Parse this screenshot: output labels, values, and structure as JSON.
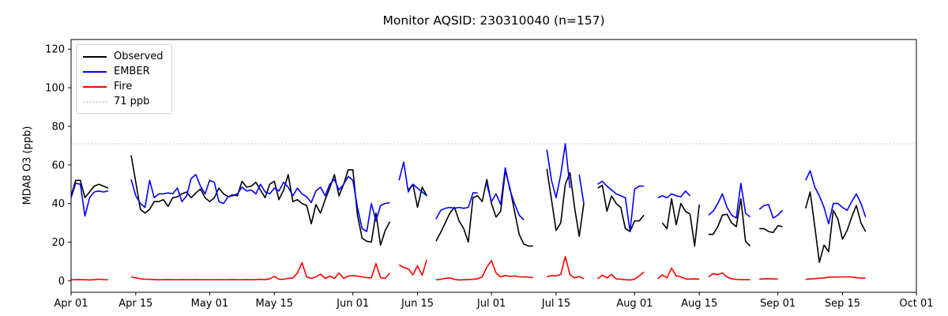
{
  "chart_data": {
    "type": "line",
    "title": "Monitor AQSID: 230310040 (n=157)",
    "ylabel": "MDA8 O3 (ppb)",
    "xlabel": "",
    "grid": false,
    "legend_position": "upper left",
    "x_axis": {
      "unit": "days since Apr 01",
      "min": 0,
      "max": 183,
      "ticks": [
        {
          "day": 0,
          "label": "Apr 01"
        },
        {
          "day": 14,
          "label": "Apr 15"
        },
        {
          "day": 30,
          "label": "May 01"
        },
        {
          "day": 44,
          "label": "May 15"
        },
        {
          "day": 61,
          "label": "Jun 01"
        },
        {
          "day": 75,
          "label": "Jun 15"
        },
        {
          "day": 91,
          "label": "Jul 01"
        },
        {
          "day": 105,
          "label": "Jul 15"
        },
        {
          "day": 122,
          "label": "Aug 01"
        },
        {
          "day": 136,
          "label": "Aug 15"
        },
        {
          "day": 153,
          "label": "Sep 01"
        },
        {
          "day": 167,
          "label": "Sep 15"
        },
        {
          "day": 183,
          "label": "Oct 01"
        }
      ]
    },
    "y_axis": {
      "min": -6,
      "max": 125,
      "ticks": [
        0,
        20,
        40,
        60,
        80,
        100,
        120
      ]
    },
    "ref_line": {
      "value": 71,
      "label": "71 ppb",
      "color": "#d3d3d3",
      "style": "dotted"
    },
    "series": [
      {
        "name": "Observed",
        "color": "#000000",
        "values": [
          44,
          52,
          52,
          43,
          46,
          49,
          50,
          49,
          48,
          null,
          null,
          null,
          null,
          65,
          51,
          37,
          35,
          37,
          41,
          41,
          42,
          38.5,
          43,
          43.5,
          45,
          46,
          43,
          45.5,
          47.5,
          43,
          41,
          43,
          48,
          45,
          43.5,
          44.5,
          44,
          51.5,
          48.5,
          49,
          51,
          47,
          43,
          50,
          51.5,
          42,
          47,
          55,
          41,
          42,
          40,
          39,
          29.5,
          39.5,
          35,
          42,
          48,
          55,
          44,
          50,
          57.5,
          57.5,
          34,
          22,
          20.5,
          20,
          35,
          18.5,
          26,
          30.5,
          null,
          null,
          null,
          47,
          50,
          38,
          48.5,
          44,
          null,
          20.5,
          25,
          30,
          35,
          38,
          31,
          27,
          20,
          43,
          44,
          41,
          52.5,
          40,
          33,
          36,
          57,
          48,
          36,
          24,
          19,
          18,
          18,
          null,
          null,
          58,
          42,
          26,
          30,
          50,
          56,
          38,
          23,
          40,
          null,
          null,
          48,
          49.5,
          36,
          44,
          40,
          38,
          27,
          25.5,
          31,
          31,
          34,
          null,
          null,
          null,
          30,
          27,
          42.5,
          29,
          40,
          36,
          34.5,
          18,
          39.5,
          null,
          24,
          24,
          28,
          34,
          34.5,
          30,
          28,
          42.5,
          20.5,
          18,
          null,
          27,
          27,
          25.5,
          25,
          28.5,
          28,
          null,
          null,
          null,
          null,
          37.5,
          46,
          28,
          9.5,
          18.5,
          15,
          36.5,
          32,
          21.5,
          26,
          33,
          39,
          30,
          25.5
        ]
      },
      {
        "name": "EMBER",
        "color": "#0000ff",
        "values": [
          43,
          50.5,
          50,
          33.5,
          43,
          46,
          46.5,
          46,
          46.5,
          null,
          null,
          null,
          null,
          52.5,
          44,
          40,
          38,
          52,
          43,
          45,
          45,
          45.5,
          45,
          48,
          41,
          44,
          53,
          55,
          49,
          45,
          52,
          51,
          41,
          40,
          43.5,
          44,
          45,
          48.5,
          46.5,
          47,
          45,
          50,
          46,
          45,
          48,
          46.5,
          51,
          48.5,
          44,
          48,
          45,
          43.5,
          40.5,
          46.5,
          48.5,
          44,
          50,
          52.5,
          47,
          50,
          54,
          52,
          38,
          27,
          25.5,
          40,
          31,
          39,
          40,
          40.5,
          null,
          52,
          61.5,
          46,
          50,
          48,
          46,
          44,
          null,
          32,
          36.5,
          37.5,
          38,
          37.5,
          38,
          37.5,
          38,
          45.5,
          45.5,
          null,
          50,
          41,
          45,
          39.5,
          58.5,
          47,
          40,
          34,
          31.5,
          null,
          null,
          null,
          null,
          68,
          52,
          43,
          55,
          71,
          48,
          null,
          55,
          40,
          null,
          null,
          50,
          51.5,
          49,
          47,
          45,
          44,
          43,
          25.5,
          47.5,
          49,
          49,
          null,
          null,
          43,
          44,
          43,
          45,
          44,
          43.5,
          46.5,
          44,
          null,
          null,
          null,
          34,
          36,
          40,
          45,
          38,
          34,
          32.5,
          50.5,
          35,
          33,
          null,
          37,
          39,
          39.5,
          32.5,
          34,
          36.5,
          null,
          null,
          null,
          null,
          52,
          57,
          48.5,
          44,
          38,
          29.5,
          40,
          40,
          38,
          36.5,
          41,
          45,
          40,
          33
        ]
      },
      {
        "name": "Fire",
        "color": "#ff0000",
        "values": [
          0.5,
          0.5,
          0.6,
          0.5,
          0.4,
          0.6,
          0.8,
          0.6,
          0.5,
          null,
          null,
          null,
          null,
          2,
          1.5,
          1,
          0.8,
          0.7,
          0.6,
          0.5,
          0.5,
          0.6,
          0.5,
          0.5,
          0.6,
          0.5,
          0.5,
          0.6,
          0.5,
          0.5,
          0.5,
          0.5,
          0.6,
          0.5,
          0.5,
          0.6,
          0.5,
          0.5,
          0.6,
          0.5,
          0.6,
          0.7,
          0.6,
          1,
          2.3,
          0.8,
          0.7,
          1.2,
          1.4,
          4,
          9.4,
          1.9,
          1.2,
          2,
          3.4,
          1.2,
          2.4,
          1.2,
          4,
          1.2,
          2.4,
          2.7,
          2.4,
          2,
          1.6,
          1.5,
          8.9,
          1.6,
          1.2,
          4,
          null,
          8.2,
          6.9,
          6.1,
          3,
          7.8,
          2.8,
          10.9,
          null,
          0.5,
          0.7,
          1.2,
          1.4,
          0.7,
          0.4,
          0.5,
          0.6,
          0.7,
          1,
          2,
          7,
          10.4,
          4,
          2,
          2.7,
          2.2,
          2.5,
          2,
          2,
          1.9,
          1.6,
          null,
          null,
          2,
          2.7,
          2.5,
          3.2,
          12.5,
          3,
          1.5,
          2.2,
          1,
          null,
          null,
          1,
          2.9,
          1.5,
          3.3,
          1,
          0.8,
          0.5,
          0.4,
          0.8,
          2.5,
          4.5,
          null,
          null,
          1,
          3,
          1.5,
          6.6,
          2.5,
          2,
          1,
          0.8,
          1,
          0.8,
          null,
          2,
          3.7,
          3.1,
          4.1,
          2,
          0.9,
          0.7,
          0.6,
          0.6,
          0.5,
          null,
          0.8,
          1,
          1.1,
          0.9,
          0.9,
          null,
          null,
          null,
          null,
          null,
          0.7,
          0.9,
          1.1,
          1.3,
          1.4,
          1.8,
          1.9,
          2,
          2,
          2,
          1.9,
          1.6,
          1.4,
          1.3
        ]
      }
    ]
  }
}
